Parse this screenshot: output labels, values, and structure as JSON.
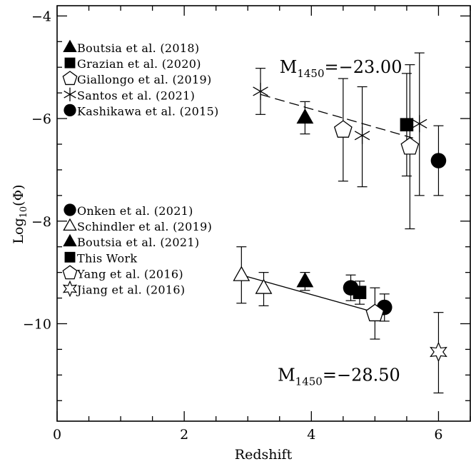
{
  "chart_data": {
    "type": "scatter",
    "xlabel": "Redshift",
    "ylabel": "Log",
    "ylabel_sub": "10",
    "ylabel_arg": "(Φ)",
    "xlim": [
      0,
      6.5
    ],
    "ylim": [
      -11.9,
      -3.8
    ],
    "x_ticks": [
      0,
      2,
      4,
      6
    ],
    "y_ticks": [
      -10,
      -8,
      -6,
      -4
    ],
    "x_tick_labels": [
      "0",
      "2",
      "4",
      "6"
    ],
    "y_tick_labels": [
      "−10",
      "−8",
      "−6",
      "−4"
    ],
    "x_minor_step": 0.5,
    "y_minor_step": 0.5,
    "annotations": [
      {
        "id": "faint",
        "prefix": "M",
        "sub": "1450",
        "value": "=−23.00",
        "x": 3.5,
        "y": -5.0
      },
      {
        "id": "bright",
        "prefix": "M",
        "sub": "1450",
        "value": "=−28.50",
        "x": 3.47,
        "y": -11.0
      }
    ],
    "fit_lines": [
      {
        "id": "faint-fit",
        "style": "dashed",
        "x": [
          3.2,
          5.6
        ],
        "y": [
          -5.53,
          -6.38
        ]
      },
      {
        "id": "bright-fit",
        "style": "solid",
        "x": [
          2.9,
          5.15
        ],
        "y": [
          -9.05,
          -9.83
        ]
      }
    ],
    "series": [
      {
        "name": "Boutsia et al. (2018)",
        "marker": "triangle-filled",
        "group": "faint",
        "points": [
          {
            "x": 3.9,
            "y": -5.98,
            "lo": -6.3,
            "hi": -5.67
          }
        ]
      },
      {
        "name": "Grazian et al. (2020)",
        "marker": "square-filled",
        "group": "faint",
        "points": [
          {
            "x": 5.5,
            "y": -6.12,
            "lo": -7.12,
            "hi": -5.12
          }
        ]
      },
      {
        "name": "Giallongo et al. (2019)",
        "marker": "pentagon-open",
        "group": "faint",
        "points": [
          {
            "x": 4.5,
            "y": -6.22,
            "lo": -7.22,
            "hi": -5.22
          },
          {
            "x": 5.55,
            "y": -6.55,
            "lo": -8.15,
            "hi": -4.95
          }
        ]
      },
      {
        "name": "Santos et al. (2021)",
        "marker": "asterisk",
        "group": "faint",
        "points": [
          {
            "x": 3.2,
            "y": -5.47,
            "lo": -5.92,
            "hi": -5.02
          },
          {
            "x": 4.8,
            "y": -6.33,
            "lo": -7.33,
            "hi": -5.38
          },
          {
            "x": 5.7,
            "y": -6.1,
            "lo": -7.5,
            "hi": -4.72
          }
        ]
      },
      {
        "name": "Kashikawa et al. (2015)",
        "marker": "circle-filled",
        "group": "faint",
        "points": [
          {
            "x": 6.0,
            "y": -6.82,
            "lo": -7.5,
            "hi": -6.14
          }
        ]
      },
      {
        "name": "Onken et al. (2021)",
        "marker": "circle-filled",
        "group": "bright",
        "points": [
          {
            "x": 4.62,
            "y": -9.3,
            "lo": -9.55,
            "hi": -9.05
          },
          {
            "x": 5.15,
            "y": -9.68,
            "lo": -9.95,
            "hi": -9.42
          }
        ]
      },
      {
        "name": "Schindler et al. (2019)",
        "marker": "triangle-open",
        "group": "bright",
        "points": [
          {
            "x": 2.9,
            "y": -9.05,
            "lo": -9.6,
            "hi": -8.5
          },
          {
            "x": 3.25,
            "y": -9.3,
            "lo": -9.65,
            "hi": -9.0
          }
        ]
      },
      {
        "name": "Boutsia et al. (2021)",
        "marker": "triangle-filled",
        "group": "bright",
        "points": [
          {
            "x": 3.9,
            "y": -9.17,
            "lo": -9.35,
            "hi": -9.0
          }
        ]
      },
      {
        "name": "This Work",
        "marker": "square-filled",
        "group": "bright",
        "points": [
          {
            "x": 4.76,
            "y": -9.39,
            "lo": -9.62,
            "hi": -9.17
          }
        ]
      },
      {
        "name": "Yang et al. (2016)",
        "marker": "pentagon-open",
        "group": "bright",
        "points": [
          {
            "x": 5.0,
            "y": -9.8,
            "lo": -10.3,
            "hi": -9.3
          }
        ]
      },
      {
        "name": "Jiang et al. (2016)",
        "marker": "star-open",
        "group": "bright",
        "points": [
          {
            "x": 6.0,
            "y": -10.55,
            "lo": -11.35,
            "hi": -9.78
          }
        ]
      }
    ],
    "legend": [
      {
        "group": "faint",
        "placement": "upper-left"
      },
      {
        "group": "bright",
        "placement": "middle-left"
      }
    ],
    "grid": false
  }
}
